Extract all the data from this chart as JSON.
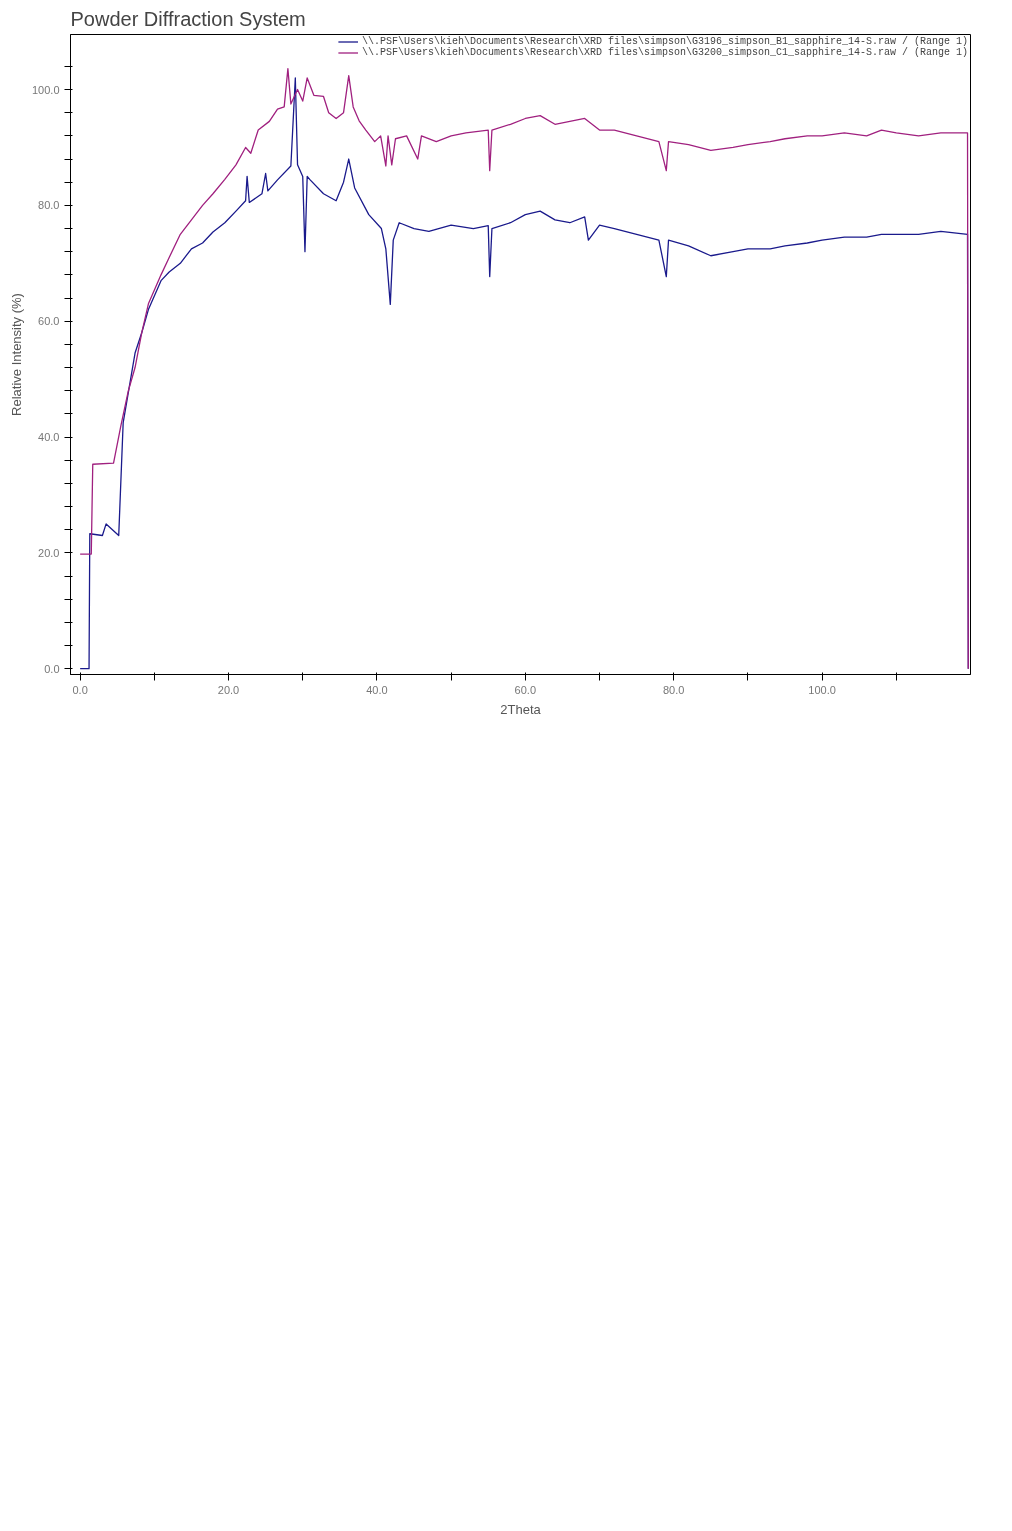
{
  "chart_data": {
    "type": "line",
    "title": "Powder Diffraction System",
    "xlabel": "2Theta",
    "ylabel": "Relative Intensity (%)",
    "xlim": [
      -1.3,
      120
    ],
    "ylim": [
      -1,
      109.5
    ],
    "xticks": [
      {
        "value": 0,
        "label": "0.0"
      },
      {
        "value": 10,
        "label": null
      },
      {
        "value": 20,
        "label": "20.0"
      },
      {
        "value": 30,
        "label": null
      },
      {
        "value": 40,
        "label": "40.0"
      },
      {
        "value": 50,
        "label": null
      },
      {
        "value": 60,
        "label": "60.0"
      },
      {
        "value": 70,
        "label": null
      },
      {
        "value": 80,
        "label": "80.0"
      },
      {
        "value": 90,
        "label": null
      },
      {
        "value": 100,
        "label": "100.0"
      },
      {
        "value": 110,
        "label": null
      }
    ],
    "yticks": [
      {
        "value": 0,
        "label": "0.0"
      },
      {
        "value": 4,
        "label": null
      },
      {
        "value": 8,
        "label": null
      },
      {
        "value": 12,
        "label": null
      },
      {
        "value": 16,
        "label": null
      },
      {
        "value": 20,
        "label": "20.0"
      },
      {
        "value": 24,
        "label": null
      },
      {
        "value": 28,
        "label": null
      },
      {
        "value": 32,
        "label": null
      },
      {
        "value": 36,
        "label": null
      },
      {
        "value": 40,
        "label": "40.0"
      },
      {
        "value": 44,
        "label": null
      },
      {
        "value": 48,
        "label": null
      },
      {
        "value": 52,
        "label": null
      },
      {
        "value": 56,
        "label": null
      },
      {
        "value": 60,
        "label": "60.0"
      },
      {
        "value": 64,
        "label": null
      },
      {
        "value": 68,
        "label": null
      },
      {
        "value": 72,
        "label": null
      },
      {
        "value": 76,
        "label": null
      },
      {
        "value": 80,
        "label": "80.0"
      },
      {
        "value": 84,
        "label": null
      },
      {
        "value": 88,
        "label": null
      },
      {
        "value": 92,
        "label": null
      },
      {
        "value": 96,
        "label": null
      },
      {
        "value": 100,
        "label": "100.0"
      },
      {
        "value": 104,
        "label": null
      }
    ],
    "grid": false,
    "legend": "top right",
    "series": [
      {
        "name": "\\\\.PSF\\Users\\kieh\\Documents\\Research\\XRD files\\simpson\\G3196_simpson_B1_sapphire_14-S.raw / (Range 1)",
        "color": "#1a1a8c",
        "x": [
          0,
          1.2,
          1.3,
          3,
          3.5,
          5.2,
          5.8,
          7.4,
          8.3,
          9.2,
          10.9,
          12,
          13.5,
          15,
          16.5,
          17.9,
          19.5,
          21,
          22.3,
          22.5,
          22.8,
          24.5,
          25,
          25.3,
          26.6,
          28.4,
          29,
          29.3,
          30,
          30.3,
          30.6,
          31,
          32.8,
          34.5,
          35.5,
          36.2,
          37,
          38.9,
          40.6,
          41.2,
          41.8,
          42.2,
          43,
          45,
          47,
          50,
          53,
          55,
          55.2,
          55.5,
          58,
          60,
          62,
          64,
          66,
          68,
          68.5,
          70,
          72,
          75,
          78,
          79,
          79.3,
          82,
          85,
          88,
          90,
          93,
          95,
          98,
          100,
          103,
          106,
          108,
          110,
          113,
          116,
          119.6,
          119.7
        ],
        "values": [
          0,
          0,
          23.3,
          23,
          25,
          23,
          42.5,
          54.5,
          58,
          62,
          67,
          68.5,
          70,
          72.5,
          73.5,
          75.4,
          77,
          79,
          80.8,
          85,
          80.5,
          82,
          85.5,
          82.5,
          84.4,
          86.8,
          102,
          87,
          85,
          72,
          85,
          84.4,
          82,
          80.8,
          84,
          88,
          83,
          78.4,
          76,
          72.5,
          62.9,
          74,
          77,
          76,
          75.5,
          76.6,
          76,
          76.5,
          67.7,
          76,
          77,
          78.4,
          79,
          77.5,
          77,
          78,
          74,
          76.6,
          76,
          75,
          74,
          67.7,
          74,
          73,
          71.3,
          72,
          72.5,
          72.5,
          73,
          73.5,
          74,
          74.5,
          74.5,
          75,
          75,
          75,
          75.5,
          75,
          0
        ]
      },
      {
        "name": "\\\\.PSF\\Users\\kieh\\Documents\\Research\\XRD files\\simpson\\G3200_simpson_C1_sapphire_14-S.raw / (Range 1)",
        "color": "#a0207f",
        "x": [
          0,
          1.5,
          1.7,
          4.5,
          5.5,
          6.5,
          7.4,
          8.3,
          9.2,
          10.9,
          12,
          13.5,
          15,
          16.5,
          17.9,
          19.5,
          21,
          22.3,
          23,
          24,
          25.5,
          26.6,
          27.5,
          28,
          28.4,
          29.3,
          30,
          30.6,
          31.5,
          32.8,
          33.5,
          34.5,
          35.5,
          36.2,
          36.8,
          37.6,
          38.5,
          39.7,
          40.5,
          41.2,
          41.5,
          42,
          42.5,
          44,
          45.5,
          46,
          48,
          50,
          52,
          55,
          55.2,
          55.5,
          58,
          60,
          62,
          64,
          66,
          68,
          70,
          72,
          75,
          78,
          79,
          79.3,
          82,
          85,
          88,
          90,
          93,
          95,
          98,
          100,
          103,
          106,
          108,
          110,
          113,
          116,
          119.6,
          119.7
        ],
        "values": [
          19.8,
          19.8,
          35.3,
          35.5,
          42,
          48,
          52,
          58,
          63,
          68,
          71,
          75,
          77.5,
          80,
          82,
          84.5,
          87,
          90,
          89,
          93,
          94.5,
          96.6,
          97,
          103.6,
          97.5,
          100,
          98,
          102,
          99,
          98.8,
          96,
          95,
          96,
          102.4,
          97,
          94.6,
          93,
          91,
          92,
          86.8,
          92,
          87,
          91.5,
          92,
          88,
          92,
          91,
          92,
          92.5,
          93,
          86,
          93,
          94,
          95,
          95.5,
          94,
          94.5,
          95,
          93,
          93,
          92,
          91,
          86,
          91,
          90.5,
          89.5,
          90,
          90.5,
          91,
          91.5,
          92,
          92,
          92.5,
          92,
          93,
          92.5,
          92,
          92.5,
          92.5,
          0
        ]
      }
    ]
  }
}
